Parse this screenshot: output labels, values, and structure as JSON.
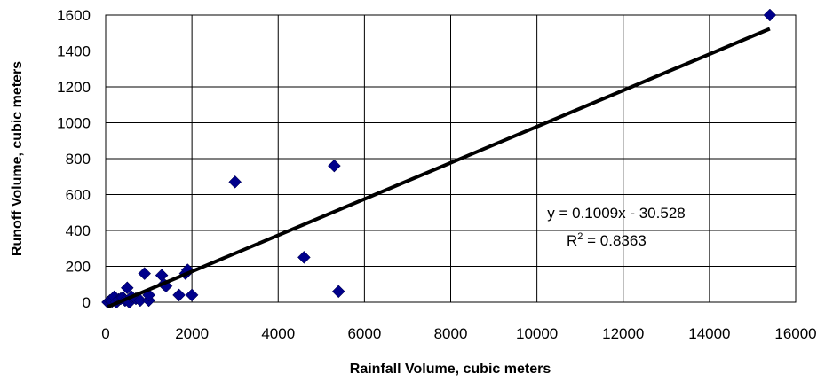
{
  "chart_data": {
    "type": "scatter",
    "xlabel": "Rainfall Volume, cubic meters",
    "ylabel": "Runoff Volume, cubic meters",
    "xlim": [
      0,
      16000
    ],
    "ylim": [
      0,
      1600
    ],
    "x_ticks": [
      0,
      2000,
      4000,
      6000,
      8000,
      10000,
      12000,
      14000,
      16000
    ],
    "y_ticks": [
      0,
      200,
      400,
      600,
      800,
      1000,
      1200,
      1400,
      1600
    ],
    "grid": true,
    "marker_color": "#00008B",
    "trendline_color": "#000000",
    "series": [
      {
        "x": [
          50,
          100,
          150,
          200,
          250,
          300,
          350,
          400,
          450,
          500,
          550,
          600,
          700,
          800,
          900,
          1000,
          1000,
          1300,
          1350,
          1400,
          1700,
          1850,
          1900,
          2000,
          3000,
          4600,
          5300,
          5400,
          15400
        ],
        "y": [
          0,
          10,
          5,
          30,
          0,
          15,
          20,
          25,
          10,
          80,
          0,
          30,
          20,
          10,
          160,
          10,
          40,
          150,
          100,
          90,
          40,
          160,
          180,
          40,
          670,
          250,
          760,
          60,
          1600
        ]
      }
    ],
    "trendline": {
      "slope": 0.1009,
      "intercept": -30.528,
      "equation": "y = 0.1009x - 30.528",
      "r2_prefix": "R",
      "r2_sup": "2",
      "r2_value": " = 0.8363"
    }
  }
}
